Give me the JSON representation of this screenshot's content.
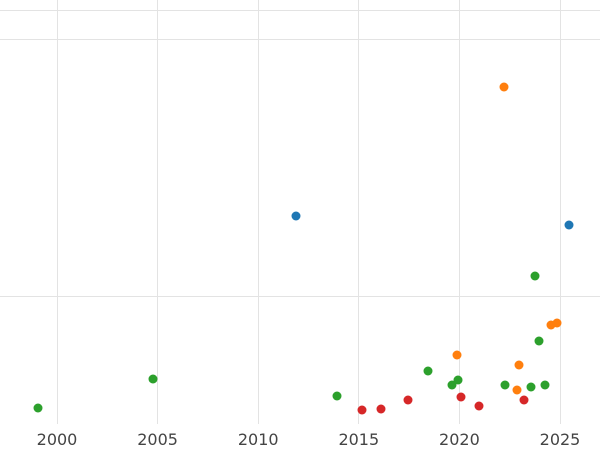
{
  "chart_data": {
    "type": "scatter",
    "title": "",
    "xlabel": "",
    "ylabel": "",
    "note": "y-axis tick labels are not visible in the screenshot; y values are expressed as percent of visible plot height (0 = bottom of plot, 100 = top gridline)",
    "xlim": [
      1997.2,
      2027
    ],
    "ylim": [
      0,
      100
    ],
    "x_tick_years": [
      2000,
      2005,
      2010,
      2015,
      2020,
      2025
    ],
    "x_tick_labels": [
      "2000",
      "2005",
      "2010",
      "2015",
      "2020",
      "2025"
    ],
    "grid": {
      "x_years": [
        2000,
        2005,
        2010,
        2015,
        2020,
        2025
      ],
      "y_percents": [
        100,
        92.9,
        31.9
      ]
    },
    "legend": "none visible",
    "series": [
      {
        "name": "green-series",
        "color": "#2ca02c",
        "points": [
          {
            "x": 1999.06,
            "y": 5.24
          },
          {
            "x": 2004.77,
            "y": 12.14
          },
          {
            "x": 2013.92,
            "y": 8.1
          },
          {
            "x": 2018.44,
            "y": 14.05
          },
          {
            "x": 2019.63,
            "y": 10.71
          },
          {
            "x": 2019.93,
            "y": 11.9
          },
          {
            "x": 2022.27,
            "y": 10.71
          },
          {
            "x": 2023.56,
            "y": 10.24
          },
          {
            "x": 2023.76,
            "y": 36.67
          },
          {
            "x": 2023.96,
            "y": 21.19
          },
          {
            "x": 2024.25,
            "y": 10.71
          }
        ]
      },
      {
        "name": "orange-series",
        "color": "#ff7f0e",
        "points": [
          {
            "x": 2019.88,
            "y": 17.86
          },
          {
            "x": 2022.22,
            "y": 81.67
          },
          {
            "x": 2022.86,
            "y": 9.52
          },
          {
            "x": 2022.96,
            "y": 15.48
          },
          {
            "x": 2024.55,
            "y": 25.0
          },
          {
            "x": 2024.85,
            "y": 25.48
          }
        ]
      },
      {
        "name": "blue-series",
        "color": "#1f77b4",
        "points": [
          {
            "x": 2011.9,
            "y": 51.0
          },
          {
            "x": 2025.45,
            "y": 48.8
          }
        ]
      },
      {
        "name": "red-series",
        "color": "#d62728",
        "points": [
          {
            "x": 2015.16,
            "y": 4.76
          },
          {
            "x": 2016.1,
            "y": 5.0
          },
          {
            "x": 2017.45,
            "y": 7.14
          },
          {
            "x": 2020.08,
            "y": 7.86
          },
          {
            "x": 2020.97,
            "y": 5.71
          },
          {
            "x": 2023.21,
            "y": 7.14
          }
        ]
      }
    ]
  }
}
